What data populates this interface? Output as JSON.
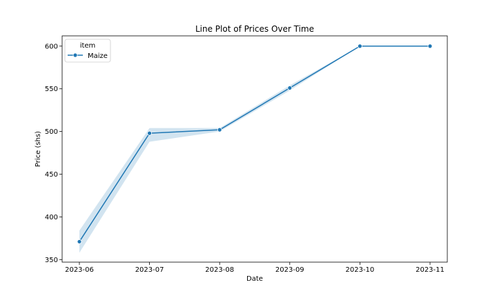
{
  "chart_data": {
    "type": "line",
    "title": "Line Plot of Prices Over Time",
    "xlabel": "Date",
    "ylabel": "Price (shs)",
    "x": [
      "2023-06",
      "2023-07",
      "2023-08",
      "2023-09",
      "2023-10",
      "2023-11"
    ],
    "xticks": [
      "2023-06",
      "2023-07",
      "2023-08",
      "2023-09",
      "2023-10",
      "2023-11"
    ],
    "ylim": [
      347,
      612
    ],
    "yticks": [
      350,
      400,
      450,
      500,
      550,
      600
    ],
    "grid": false,
    "legend": {
      "title": "item",
      "placement": "top-left"
    },
    "series": [
      {
        "name": "Maize",
        "color": "#1f77b4",
        "marker": "circle",
        "values": [
          371,
          498,
          502,
          551,
          600,
          600
        ],
        "ci_lower": [
          358,
          488,
          500,
          548,
          600,
          600
        ],
        "ci_upper": [
          384,
          504,
          504,
          554,
          600,
          600
        ]
      }
    ]
  }
}
